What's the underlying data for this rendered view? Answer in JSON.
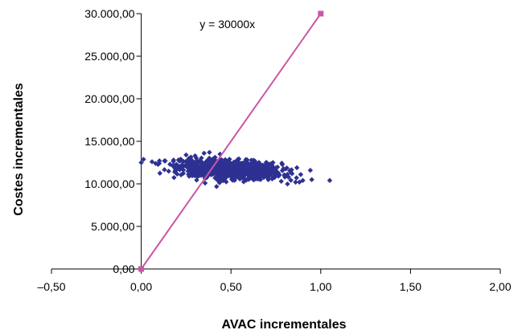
{
  "chart_data": {
    "type": "scatter",
    "xlabel": "AVAC incrementales",
    "ylabel": "Costes incrementales",
    "xlim": [
      -0.5,
      2.0
    ],
    "ylim": [
      0,
      30000
    ],
    "x_ticks": [
      -0.5,
      0.0,
      0.5,
      1.0,
      1.5,
      2.0
    ],
    "x_tick_labels": [
      "–0,50",
      "0,00",
      "0,50",
      "1,00",
      "1,50",
      "2,00"
    ],
    "y_ticks": [
      0,
      5000,
      10000,
      15000,
      20000,
      25000,
      30000
    ],
    "y_tick_labels": [
      "0,00",
      "5.000,00",
      "10.000,00",
      "15.000,00",
      "20.000,00",
      "25.000,00",
      "30.000,00"
    ],
    "grid": false,
    "series": [
      {
        "color": "#2e3192",
        "marker": "diamond",
        "cloud": {
          "count": 1100,
          "x_mean": 0.5,
          "x_sd": 0.14,
          "y_mean": 11700,
          "y_sd": 550,
          "correlation": -0.3
        },
        "x": [
          0.0,
          0.06,
          0.1,
          0.13,
          0.16,
          0.18,
          0.2,
          0.22,
          0.8,
          0.82,
          0.84,
          0.86,
          0.9,
          0.95,
          1.05,
          0.25,
          0.35,
          0.38,
          0.3,
          0.78
        ],
        "y": [
          12500,
          12600,
          12400,
          12700,
          12300,
          12800,
          12100,
          12900,
          11000,
          10800,
          11200,
          10200,
          10400,
          10500,
          10400,
          13400,
          13600,
          13700,
          13300,
          10300
        ]
      },
      {
        "name": "y = 30000x",
        "color": "#c956a6",
        "marker": "square",
        "type": "line",
        "x": [
          0.0,
          1.0
        ],
        "y": [
          0,
          30000
        ]
      }
    ],
    "annotations": [
      {
        "text": "y = 30000x",
        "x": 0.48,
        "y": 28300
      }
    ]
  }
}
